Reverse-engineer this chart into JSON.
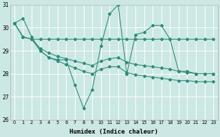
{
  "x": [
    0,
    1,
    2,
    3,
    4,
    5,
    6,
    7,
    8,
    9,
    10,
    11,
    12,
    13,
    14,
    15,
    16,
    17,
    18,
    19,
    20,
    21,
    22,
    23
  ],
  "series": [
    [
      30.2,
      30.4,
      29.6,
      29.0,
      28.7,
      28.6,
      28.6,
      27.5,
      26.5,
      27.3,
      29.2,
      30.6,
      31.0,
      28.0,
      29.7,
      29.8,
      30.1,
      30.1,
      29.5,
      28.1,
      28.1,
      28.0,
      28.0,
      28.0
    ],
    [
      30.2,
      29.6,
      29.5,
      29.5,
      29.5,
      29.5,
      29.5,
      29.5,
      29.5,
      29.5,
      29.5,
      29.5,
      29.5,
      29.5,
      29.5,
      29.5,
      29.5,
      29.5,
      29.5,
      29.5,
      29.5,
      29.5,
      29.5,
      29.5
    ],
    [
      30.2,
      29.6,
      29.5,
      29.1,
      28.9,
      28.75,
      28.65,
      28.55,
      28.45,
      28.35,
      28.55,
      28.65,
      28.7,
      28.5,
      28.4,
      28.35,
      28.3,
      28.25,
      28.2,
      28.1,
      28.05,
      28.0,
      28.0,
      28.0
    ],
    [
      30.2,
      29.6,
      29.5,
      29.0,
      28.7,
      28.55,
      28.4,
      28.25,
      28.1,
      28.0,
      28.2,
      28.3,
      28.3,
      28.05,
      27.95,
      27.9,
      27.85,
      27.8,
      27.75,
      27.7,
      27.7,
      27.65,
      27.65,
      27.65
    ]
  ],
  "color": "#2d8b7a",
  "bg_color": "#cce8e4",
  "grid_color": "#ffffff",
  "xlabel": "Humidex (Indice chaleur)",
  "ylim": [
    26,
    31
  ],
  "xlim": [
    -0.5,
    23.5
  ],
  "yticks": [
    26,
    27,
    28,
    29,
    30,
    31
  ],
  "xtick_labels": [
    "0",
    "1",
    "2",
    "3",
    "4",
    "5",
    "6",
    "7",
    "8",
    "9",
    "10",
    "11",
    "12",
    "13",
    "14",
    "15",
    "16",
    "17",
    "18",
    "19",
    "20",
    "21",
    "22",
    "23"
  ],
  "marker": "D",
  "markersize": 2.0,
  "linewidth": 0.8,
  "figsize": [
    3.2,
    2.0
  ],
  "dpi": 100
}
